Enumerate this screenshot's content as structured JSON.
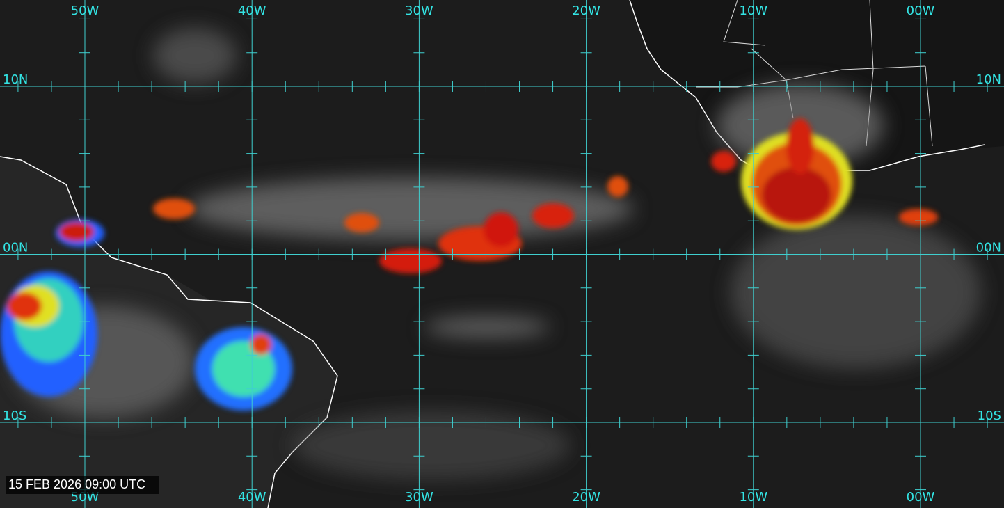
{
  "map": {
    "longitude_labels": [
      "50W",
      "40W",
      "30W",
      "20W",
      "10W",
      "00W"
    ],
    "latitude_labels": [
      "10N",
      "00N",
      "10S"
    ],
    "timestamp": "15 FEB 2026 09:00 UTC"
  }
}
